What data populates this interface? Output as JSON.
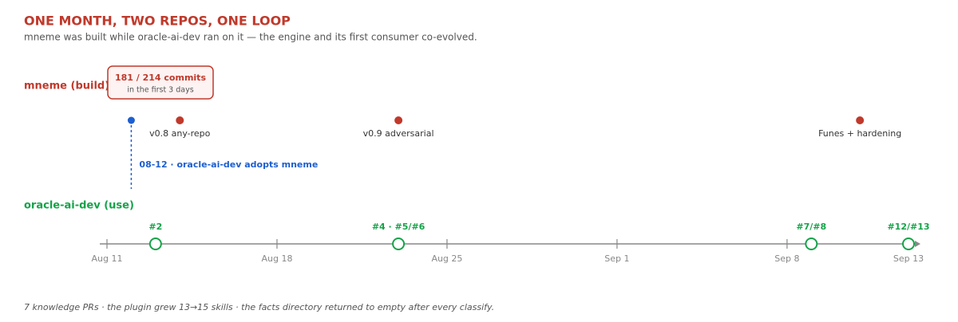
{
  "title": "ONE MONTH, TWO REPOS, ONE LOOP",
  "subtitle": "mneme was built while oracle-ai-dev ran on it — the engine and its first consumer co-evolved.",
  "build": {
    "label": "mneme (build)",
    "callout": {
      "headline": "181 / 214 commits",
      "note": "in the first 3 days"
    },
    "events": [
      {
        "day": 3,
        "label": "v0.8 any-repo"
      },
      {
        "day": 12,
        "label": "v0.9 adversarial"
      },
      {
        "day": 31,
        "label": "Funes + hardening"
      }
    ],
    "adoption": {
      "day": 1,
      "label": "08-12 · oracle-ai-dev adopts mneme"
    }
  },
  "use": {
    "label": "oracle-ai-dev (use)",
    "prs": [
      {
        "day": 2,
        "label": "#2"
      },
      {
        "day": 12,
        "label": "#4 · #5/#6"
      },
      {
        "day": 29,
        "label": "#7/#8"
      },
      {
        "day": 33,
        "label": "#12/#13"
      }
    ]
  },
  "axis": {
    "ticks": [
      {
        "value": 0,
        "label": "Aug 11"
      },
      {
        "value": 7,
        "label": "Aug 18"
      },
      {
        "value": 14,
        "label": "Aug 25"
      },
      {
        "value": 21,
        "label": "Sep 1"
      },
      {
        "value": 28,
        "label": "Sep 8"
      },
      {
        "value": 33,
        "label": "Sep 13"
      }
    ]
  },
  "footer": "7 knowledge PRs · the plugin grew 13→15 skills · the facts directory returned to empty after every classify."
}
